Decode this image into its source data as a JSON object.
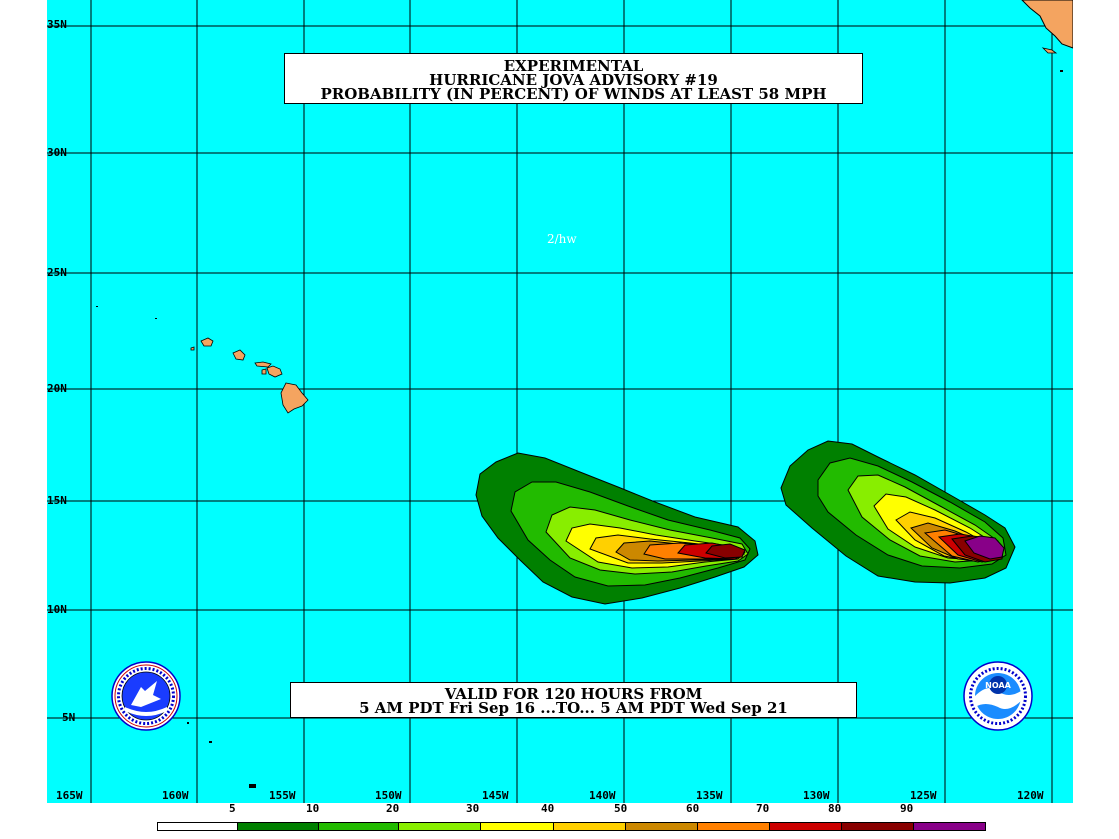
{
  "title": {
    "line1": "EXPERIMENTAL",
    "line2": "HURRICANE JOVA ADVISORY #19",
    "line3": "PROBABILITY (IN PERCENT) OF WINDS AT LEAST 58 MPH"
  },
  "credit": "2/hw",
  "valid": {
    "line1": "VALID FOR 120 HOURS FROM",
    "line2": "5 AM PDT Fri Sep 16 ...TO... 5 AM PDT Wed Sep 21"
  },
  "lat_labels": [
    "35N",
    "30N",
    "25N",
    "20N",
    "15N",
    "10N",
    "5N"
  ],
  "lon_labels": [
    "165W",
    "160W",
    "155W",
    "150W",
    "145W",
    "140W",
    "135W",
    "130W",
    "125W",
    "120W"
  ],
  "legend": {
    "labels": [
      "5",
      "10",
      "20",
      "30",
      "40",
      "50",
      "60",
      "70",
      "80",
      "90"
    ],
    "colors": [
      "#ffffff",
      "#008000",
      "#22bb00",
      "#88ee00",
      "#ffff00",
      "#ffd000",
      "#cc8800",
      "#ff8000",
      "#cc0000",
      "#880000",
      "#880088"
    ]
  },
  "colors": {
    "ocean": "#00ffff",
    "land": "#f4a460",
    "grid": "#000000"
  },
  "logos": {
    "left": "national-weather-service-logo",
    "right": "noaa-logo"
  },
  "noaa_logo_text": "NOAA"
}
